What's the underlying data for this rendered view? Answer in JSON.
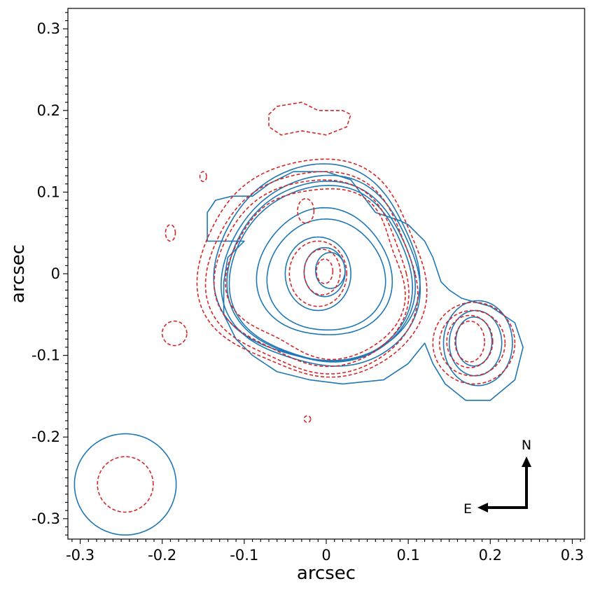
{
  "chart_data": {
    "type": "contour",
    "xlabel": "arcsec",
    "ylabel": "arcsec",
    "xlim": [
      -0.315,
      0.315
    ],
    "ylim": [
      -0.325,
      0.325
    ],
    "x_ticks": [
      -0.3,
      -0.2,
      -0.1,
      0,
      0.1,
      0.2,
      0.3
    ],
    "x_tick_labels": [
      "-0.3",
      "-0.2",
      "-0.1",
      "0",
      "0.1",
      "0.2",
      "0.3"
    ],
    "y_ticks": [
      -0.3,
      -0.2,
      -0.1,
      0,
      0.1,
      0.2,
      0.3
    ],
    "y_tick_labels": [
      "-0.3",
      "-0.2",
      "-0.1",
      "0",
      "0.1",
      "0.2",
      "0.3"
    ],
    "grid": false,
    "colors": {
      "solid": "#1f77b4",
      "dashed": "#d62728"
    },
    "compass": {
      "north": "N",
      "east": "E"
    },
    "series": [
      {
        "style": "solid",
        "contours": [
          {
            "shape": "blob",
            "center": [
              -0.01,
              0.01
            ],
            "radius": 0.122,
            "amps": [
              0.02,
              0.05,
              0.01
            ],
            "phases": [
              0.5,
              2.0,
              1.0
            ]
          },
          {
            "shape": "blob",
            "center": [
              -0.005,
              0.0
            ],
            "radius": 0.112,
            "amps": [
              0.02,
              0.04,
              0.01
            ],
            "phases": [
              0.6,
              2.1,
              0.9
            ]
          },
          {
            "shape": "blob",
            "center": [
              -0.005,
              0.0
            ],
            "radius": 0.118,
            "amps": [
              0.02,
              0.05,
              0.01
            ],
            "phases": [
              0.6,
              2.1,
              0.9
            ]
          },
          {
            "shape": "blob",
            "center": [
              -0.005,
              -0.002
            ],
            "radius": 0.109,
            "amps": [
              0.02,
              0.04,
              0.01
            ],
            "phases": [
              0.6,
              2.2,
              0.9
            ]
          },
          {
            "shape": "blob",
            "center": [
              -0.002,
              0.0
            ],
            "radius": 0.08,
            "amps": [
              0.03,
              0.04,
              0.0
            ],
            "phases": [
              0.3,
              1.7,
              0.0
            ]
          },
          {
            "shape": "blob",
            "center": [
              0.0,
              -0.003
            ],
            "radius": 0.07,
            "amps": [
              0.03,
              0.03,
              0.0
            ],
            "phases": [
              0.2,
              1.6,
              0.0
            ]
          },
          {
            "shape": "ellipse",
            "center": [
              -0.01,
              0.0
            ],
            "rx": 0.04,
            "ry": 0.045
          },
          {
            "shape": "ellipse",
            "center": [
              -0.002,
              0.002
            ],
            "rx": 0.025,
            "ry": 0.03
          },
          {
            "shape": "ellipse",
            "center": [
              0.005,
              0.004
            ],
            "rx": 0.018,
            "ry": 0.022
          },
          {
            "shape": "polygon",
            "points": [
              [
                -0.145,
                0.04
              ],
              [
                -0.145,
                0.075
              ],
              [
                -0.135,
                0.09
              ],
              [
                -0.115,
                0.095
              ],
              [
                -0.09,
                0.095
              ],
              [
                -0.07,
                0.11
              ],
              [
                -0.04,
                0.125
              ],
              [
                0.0,
                0.125
              ],
              [
                0.03,
                0.115
              ],
              [
                0.06,
                0.075
              ],
              [
                0.09,
                0.065
              ],
              [
                0.1,
                0.06
              ],
              [
                0.12,
                0.04
              ],
              [
                0.13,
                0.02
              ],
              [
                0.14,
                -0.01
              ],
              [
                0.15,
                -0.02
              ],
              [
                0.165,
                -0.03
              ],
              [
                0.2,
                -0.04
              ],
              [
                0.23,
                -0.06
              ],
              [
                0.24,
                -0.09
              ],
              [
                0.23,
                -0.13
              ],
              [
                0.2,
                -0.155
              ],
              [
                0.17,
                -0.155
              ],
              [
                0.145,
                -0.135
              ],
              [
                0.13,
                -0.11
              ],
              [
                0.12,
                -0.085
              ],
              [
                0.1,
                -0.11
              ],
              [
                0.07,
                -0.13
              ],
              [
                0.02,
                -0.135
              ],
              [
                -0.02,
                -0.13
              ],
              [
                -0.06,
                -0.12
              ],
              [
                -0.09,
                -0.1
              ],
              [
                -0.11,
                -0.08
              ],
              [
                -0.125,
                -0.05
              ],
              [
                -0.125,
                -0.01
              ],
              [
                -0.12,
                0.02
              ],
              [
                -0.1,
                0.04
              ],
              [
                -0.125,
                0.04
              ],
              [
                -0.145,
                0.04
              ]
            ]
          },
          {
            "shape": "ellipse",
            "center": [
              0.185,
              -0.085
            ],
            "rx": 0.042,
            "ry": 0.052
          },
          {
            "shape": "ellipse",
            "center": [
              0.182,
              -0.085
            ],
            "rx": 0.032,
            "ry": 0.04
          },
          {
            "shape": "ellipse",
            "center": [
              0.18,
              -0.083
            ],
            "rx": 0.022,
            "ry": 0.03
          },
          {
            "shape": "ellipse",
            "center": [
              -0.245,
              -0.258
            ],
            "rx": 0.062,
            "ry": 0.062
          }
        ]
      },
      {
        "style": "dashed",
        "contours": [
          {
            "shape": "blob",
            "center": [
              -0.015,
              0.005
            ],
            "radius": 0.135,
            "amps": [
              0.03,
              0.05,
              0.02
            ],
            "phases": [
              0.8,
              2.3,
              1.2
            ]
          },
          {
            "shape": "blob",
            "center": [
              -0.015,
              0.0
            ],
            "radius": 0.125,
            "amps": [
              0.03,
              0.05,
              0.02
            ],
            "phases": [
              0.9,
              2.4,
              1.3
            ]
          },
          {
            "shape": "blob",
            "center": [
              -0.015,
              0.0
            ],
            "radius": 0.115,
            "amps": [
              0.03,
              0.05,
              0.02
            ],
            "phases": [
              1.0,
              2.5,
              1.4
            ]
          },
          {
            "shape": "blob",
            "center": [
              -0.01,
              0.0
            ],
            "radius": 0.105,
            "amps": [
              0.04,
              0.06,
              0.03
            ],
            "phases": [
              1.1,
              2.6,
              1.5
            ]
          },
          {
            "shape": "ellipse",
            "center": [
              -0.01,
              0.0
            ],
            "rx": 0.035,
            "ry": 0.04
          },
          {
            "shape": "ellipse",
            "center": [
              -0.005,
              0.002
            ],
            "rx": 0.022,
            "ry": 0.028
          },
          {
            "shape": "ellipse",
            "center": [
              -0.002,
              0.003
            ],
            "rx": 0.01,
            "ry": 0.015
          },
          {
            "shape": "ellipse",
            "center": [
              0.18,
              -0.085
            ],
            "rx": 0.05,
            "ry": 0.05
          },
          {
            "shape": "ellipse",
            "center": [
              0.178,
              -0.085
            ],
            "rx": 0.04,
            "ry": 0.04
          },
          {
            "shape": "ellipse",
            "center": [
              0.175,
              -0.083
            ],
            "rx": 0.028,
            "ry": 0.032
          },
          {
            "shape": "ellipse",
            "center": [
              0.175,
              -0.083
            ],
            "rx": 0.018,
            "ry": 0.025
          },
          {
            "shape": "ellipse",
            "center": [
              -0.025,
              0.077
            ],
            "rx": 0.01,
            "ry": 0.015
          },
          {
            "shape": "polygon",
            "points": [
              [
                -0.07,
                0.195
              ],
              [
                -0.06,
                0.205
              ],
              [
                -0.03,
                0.21
              ],
              [
                -0.01,
                0.2
              ],
              [
                0.02,
                0.2
              ],
              [
                0.03,
                0.195
              ],
              [
                0.025,
                0.18
              ],
              [
                0.0,
                0.17
              ],
              [
                -0.03,
                0.175
              ],
              [
                -0.055,
                0.17
              ],
              [
                -0.07,
                0.18
              ],
              [
                -0.07,
                0.195
              ]
            ]
          },
          {
            "shape": "ellipse",
            "center": [
              -0.185,
              -0.073
            ],
            "rx": 0.015,
            "ry": 0.015
          },
          {
            "shape": "ellipse",
            "center": [
              -0.19,
              0.05
            ],
            "rx": 0.006,
            "ry": 0.01
          },
          {
            "shape": "ellipse",
            "center": [
              -0.15,
              0.119
            ],
            "rx": 0.004,
            "ry": 0.006
          },
          {
            "shape": "ellipse",
            "center": [
              -0.023,
              -0.178
            ],
            "rx": 0.004,
            "ry": 0.004
          },
          {
            "shape": "ellipse",
            "center": [
              -0.245,
              -0.258
            ],
            "rx": 0.034,
            "ry": 0.034
          }
        ]
      }
    ]
  }
}
